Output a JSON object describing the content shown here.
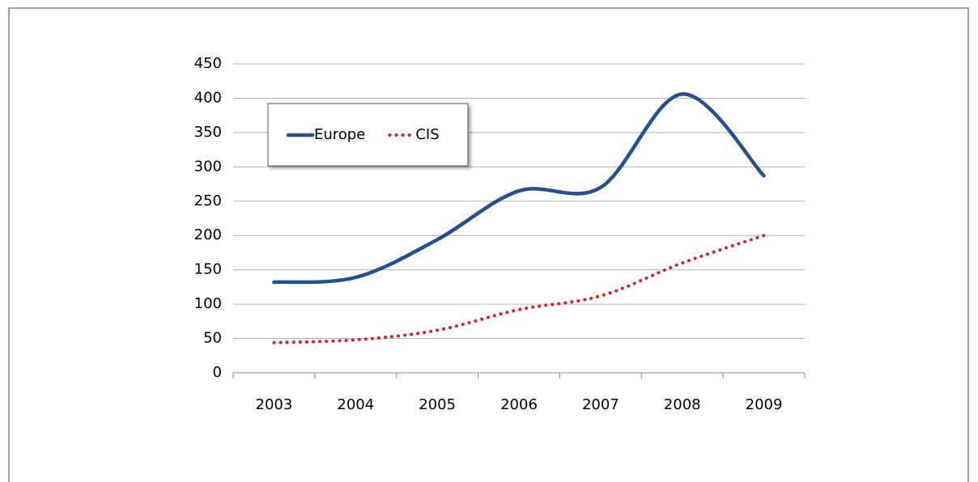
{
  "chart_data": {
    "type": "line",
    "categories": [
      "2003",
      "2004",
      "2005",
      "2006",
      "2007",
      "2008",
      "2009"
    ],
    "series": [
      {
        "name": "Europe",
        "color": "#23508f",
        "values": [
          132,
          139,
          194,
          265,
          270,
          406,
          287
        ]
      },
      {
        "name": "CIS",
        "color": "#d42027",
        "values": [
          44,
          48,
          62,
          92,
          112,
          160,
          200
        ]
      }
    ],
    "ylim": [
      0,
      450
    ],
    "yticks": [
      0,
      50,
      100,
      150,
      200,
      250,
      300,
      350,
      400,
      450
    ],
    "grid": true,
    "smooth": true,
    "legend": "top-left"
  }
}
